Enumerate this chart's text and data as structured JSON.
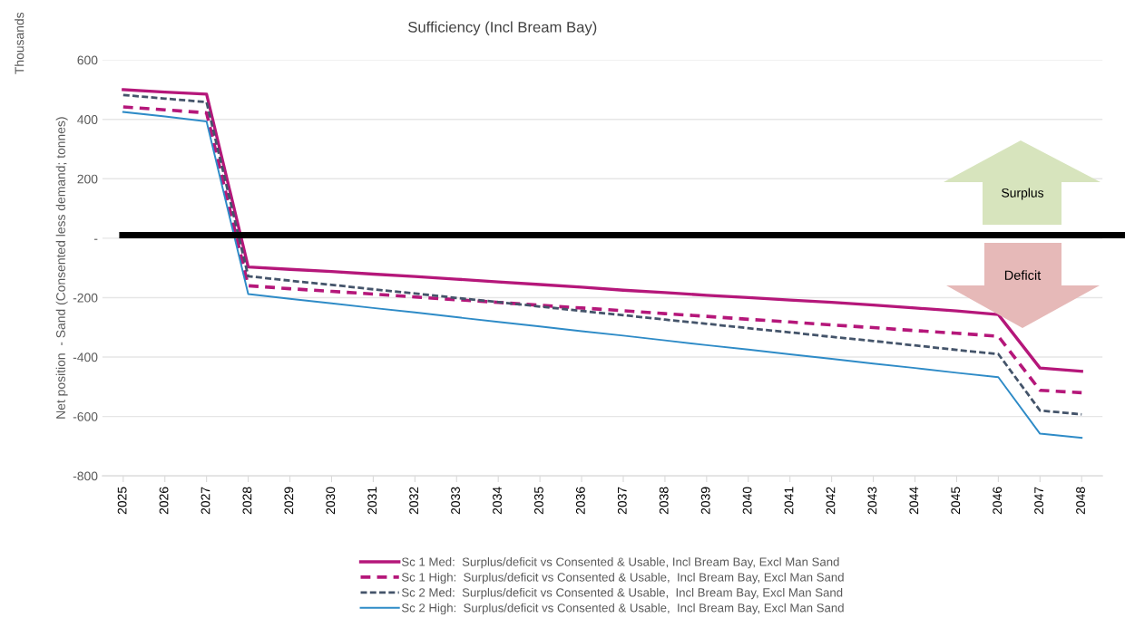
{
  "chart_data": {
    "type": "line",
    "title": "Sufficiency (Incl Bream Bay)",
    "ylabel": "Net position  - Sand (Consented less demand; tonnes)",
    "annotations": [
      "Thousands",
      "Surplus",
      "Deficit"
    ],
    "categories": [
      "2025",
      "2026",
      "2027",
      "2028",
      "2029",
      "2030",
      "2031",
      "2032",
      "2033",
      "2034",
      "2035",
      "2036",
      "2037",
      "2038",
      "2039",
      "2040",
      "2041",
      "2042",
      "2043",
      "2044",
      "2045",
      "2046",
      "2047",
      "2048"
    ],
    "ylim": [
      -800,
      600
    ],
    "yticks": [
      -800,
      -600,
      -400,
      -200,
      {
        "value": 0,
        "label": "-"
      },
      200,
      400,
      600
    ],
    "grid": "y",
    "legend": "bottom",
    "marker": "none",
    "ref_lines": [
      {
        "axis": "y",
        "value": 10,
        "color": "#000000"
      }
    ],
    "series": [
      {
        "name": "Sc 1 Med:  Surplus/deficit vs Consented & Usable, Incl Bream Bay, Excl Man Sand",
        "color": "#b5177a",
        "line_style": "solid",
        "values": [
          500,
          492,
          485,
          -97,
          -105,
          -112,
          -121,
          -129,
          -138,
          -147,
          -156,
          -165,
          -175,
          -183,
          -192,
          -200,
          -208,
          -216,
          -225,
          -235,
          -245,
          -257,
          -437,
          -448
        ]
      },
      {
        "name": "Sc 1 High:  Surplus/deficit vs Consented & Usable,  Incl Bream Bay, Excl Man Sand",
        "color": "#b5177a",
        "line_style": "dashed",
        "values": [
          442,
          432,
          422,
          -160,
          -170,
          -179,
          -188,
          -198,
          -207,
          -216,
          -226,
          -235,
          -244,
          -254,
          -263,
          -273,
          -282,
          -292,
          -301,
          -311,
          -320,
          -330,
          -512,
          -520
        ]
      },
      {
        "name": "Sc 2 Med:  Surplus/deficit vs Consented & Usable,  Incl Bream Bay, Excl Man Sand",
        "color": "#44546a",
        "line_style": "dotted",
        "values": [
          482,
          470,
          458,
          -128,
          -143,
          -157,
          -172,
          -186,
          -201,
          -215,
          -230,
          -245,
          -259,
          -274,
          -288,
          -303,
          -317,
          -332,
          -346,
          -361,
          -376,
          -390,
          -580,
          -593
        ]
      },
      {
        "name": "Sc 2 High:  Surplus/deficit vs Consented & Usable,  Incl Bream Bay, Excl Man Sand",
        "color": "#2e8bc7",
        "line_style": "solid",
        "values": [
          425,
          410,
          393,
          -188,
          -204,
          -219,
          -235,
          -250,
          -266,
          -282,
          -297,
          -313,
          -328,
          -344,
          -360,
          -375,
          -391,
          -406,
          -422,
          -437,
          -453,
          -468,
          -658,
          -672
        ]
      }
    ]
  }
}
